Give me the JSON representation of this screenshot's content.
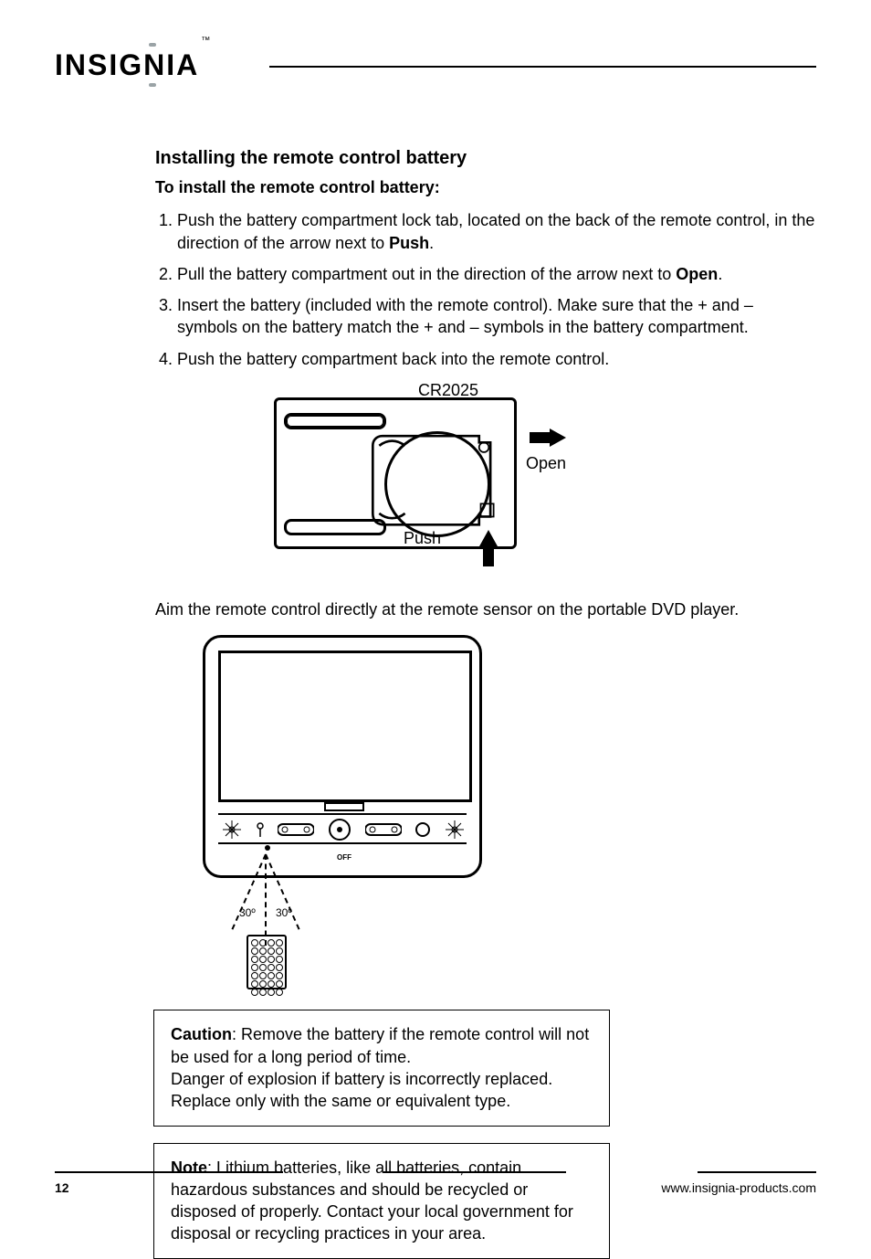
{
  "logo": {
    "text": "INSIGNIA",
    "tm": "™"
  },
  "section": {
    "title": "Installing the remote control battery",
    "subtitle": "To install the remote control battery:",
    "steps": [
      {
        "n": "1",
        "pre": "Push the battery compartment lock tab, located on the back of the remote control, in the direction of the arrow next to ",
        "bold": "Push",
        "post": "."
      },
      {
        "n": "2",
        "pre": "Pull the battery compartment out in the direction of the arrow next to ",
        "bold": "Open",
        "post": "."
      },
      {
        "n": "3",
        "pre": "Insert the battery (included with the remote control). Make sure that the + and – symbols on the battery match the + and – symbols in the battery compartment.",
        "bold": "",
        "post": ""
      },
      {
        "n": "4",
        "pre": "Push the battery compartment back into the remote control.",
        "bold": "",
        "post": ""
      }
    ]
  },
  "battery_diagram": {
    "label_battery_type": "CR2025",
    "label_open": "Open",
    "label_push": "Push",
    "colors": {
      "stroke": "#000000",
      "bg": "#ffffff"
    }
  },
  "aim_text": "Aim the remote control directly at the remote sensor on the portable DVD player.",
  "aim_diagram": {
    "angle_left": "30º",
    "angle_right": "30º",
    "off_label": "OFF",
    "remote_rows": 7,
    "remote_cols": 4,
    "colors": {
      "stroke": "#000000"
    }
  },
  "caution_box": {
    "label": "Caution",
    "text": "Remove the battery if the remote control will not be used for a long period of time.\nDanger of explosion if battery is incorrectly replaced. Replace only with the same or equivalent type."
  },
  "note_box": {
    "label": "Note",
    "text": "Lithium batteries, like all batteries, contain hazardous substances and should be recycled or disposed of properly. Contact your local government for disposal or recycling practices in your area."
  },
  "footer": {
    "page_number": "12",
    "url": "www.insignia-products.com"
  }
}
